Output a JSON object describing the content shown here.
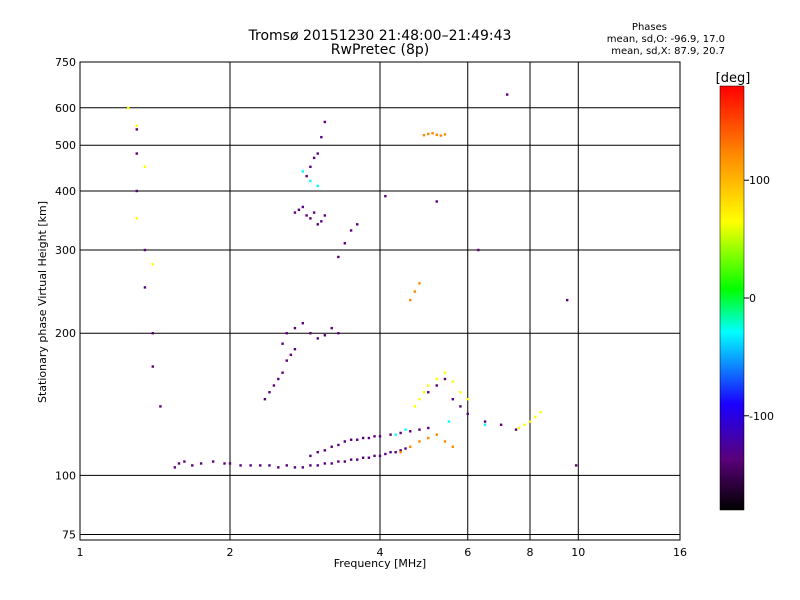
{
  "header": {
    "title": "Tromsø 20151230 21:48:00–21:49:43",
    "subtitle": "RwPretec (8p)"
  },
  "stats": {
    "heading": "Phases",
    "line1": "mean, sd,O: -96.9, 17.0",
    "line2": "mean, sd,X:  87.9, 20.7"
  },
  "chart_data": {
    "type": "scatter",
    "xlabel": "Frequency [MHz]",
    "ylabel": "Stationary phase Virtual Height [km]",
    "xscale": "log",
    "yscale": "log",
    "xlim": [
      1,
      16
    ],
    "ylim": [
      73,
      750
    ],
    "xticks": [
      1,
      2,
      4,
      6,
      8,
      10,
      16
    ],
    "yticks": [
      75,
      100,
      200,
      300,
      400,
      500,
      600,
      750
    ],
    "grid": true,
    "colorbar": {
      "label": "[deg]",
      "range": [
        -180,
        180
      ],
      "ticks": [
        100,
        0,
        -100
      ]
    },
    "series": [
      {
        "phase": -100,
        "x": [
          1.55,
          1.58,
          1.62,
          1.68,
          1.75,
          1.85,
          1.95,
          2.0,
          2.1,
          2.2,
          2.3,
          2.4,
          2.5,
          2.6,
          2.7,
          2.8,
          2.9,
          3.0,
          3.1,
          3.2,
          3.3,
          3.4,
          3.5,
          3.6,
          3.7,
          3.8,
          3.9,
          4.0,
          4.1,
          4.2,
          4.3,
          4.4,
          4.5
        ],
        "y": [
          104,
          106,
          107,
          105,
          106,
          107,
          106,
          106,
          105,
          105,
          105,
          105,
          104,
          105,
          104,
          104,
          105,
          105,
          106,
          106,
          107,
          107,
          108,
          108,
          109,
          109,
          110,
          110,
          111,
          112,
          112,
          113,
          114
        ]
      },
      {
        "phase": -100,
        "x": [
          2.9,
          3.0,
          3.1,
          3.2,
          3.3,
          3.4,
          3.5,
          3.6,
          3.7,
          3.8,
          3.9,
          4.0,
          4.2,
          4.4,
          4.6,
          4.8,
          5.0
        ],
        "y": [
          110,
          112,
          113,
          115,
          116,
          118,
          119,
          119,
          120,
          120,
          121,
          121,
          122,
          123,
          124,
          125,
          126
        ]
      },
      {
        "phase": -100,
        "x": [
          2.35,
          2.4,
          2.45,
          2.5,
          2.55,
          2.6,
          2.65,
          2.7
        ],
        "y": [
          145,
          150,
          155,
          160,
          165,
          175,
          180,
          185
        ]
      },
      {
        "phase": -100,
        "x": [
          2.55,
          2.6,
          2.7,
          2.8,
          2.9,
          3.0,
          3.1,
          3.2,
          3.3
        ],
        "y": [
          190,
          200,
          205,
          210,
          200,
          195,
          198,
          205,
          200
        ]
      },
      {
        "phase": -100,
        "x": [
          2.7,
          2.75,
          2.8,
          2.85,
          2.9,
          2.95,
          3.0,
          3.05,
          3.1
        ],
        "y": [
          360,
          365,
          370,
          355,
          350,
          360,
          340,
          345,
          355
        ]
      },
      {
        "phase": -100,
        "x": [
          2.85,
          2.9,
          2.95,
          3.0,
          3.05,
          3.1
        ],
        "y": [
          430,
          450,
          470,
          480,
          520,
          560
        ]
      },
      {
        "phase": -100,
        "x": [
          3.3,
          3.4,
          3.5,
          3.6
        ],
        "y": [
          290,
          310,
          330,
          340
        ]
      },
      {
        "phase": -100,
        "x": [
          5.0,
          5.2,
          5.4,
          5.6,
          5.8,
          6.0,
          6.5,
          7.0,
          7.5
        ],
        "y": [
          150,
          155,
          160,
          145,
          140,
          135,
          130,
          128,
          125
        ]
      },
      {
        "phase": 100,
        "x": [
          4.7,
          4.8,
          4.9,
          5.0,
          5.2,
          5.4,
          5.6,
          5.8,
          6.0
        ],
        "y": [
          140,
          145,
          150,
          155,
          160,
          165,
          158,
          150,
          145
        ]
      },
      {
        "phase": 100,
        "x": [
          7.6,
          7.8,
          8.0,
          8.2,
          8.4
        ],
        "y": [
          126,
          128,
          130,
          133,
          136
        ]
      },
      {
        "phase": 150,
        "x": [
          4.4,
          4.6,
          4.8,
          5.0,
          5.2,
          5.4,
          5.6
        ],
        "y": [
          112,
          115,
          118,
          120,
          122,
          118,
          115
        ]
      },
      {
        "phase": 150,
        "x": [
          4.9,
          5.0,
          5.1,
          5.2,
          5.3,
          5.4
        ],
        "y": [
          525,
          528,
          530,
          526,
          524,
          527
        ]
      },
      {
        "phase": 130,
        "x": [
          4.6,
          4.7,
          4.8
        ],
        "y": [
          235,
          245,
          255
        ]
      },
      {
        "phase": -20,
        "x": [
          2.8,
          2.9,
          3.0,
          4.3,
          4.5,
          5.5,
          6.5
        ],
        "y": [
          440,
          420,
          410,
          122,
          125,
          130,
          128
        ]
      },
      {
        "phase": -100,
        "x": [
          1.3,
          1.3,
          1.3,
          1.35,
          1.35,
          1.4,
          1.4,
          1.45
        ],
        "y": [
          540,
          480,
          400,
          300,
          250,
          200,
          170,
          140
        ]
      },
      {
        "phase": 110,
        "x": [
          1.25,
          1.3,
          1.35,
          1.3,
          1.4
        ],
        "y": [
          600,
          550,
          450,
          350,
          280
        ]
      },
      {
        "phase": -100,
        "x": [
          4.1,
          5.2,
          6.3,
          7.2,
          9.5,
          9.9
        ],
        "y": [
          390,
          380,
          300,
          640,
          235,
          105
        ]
      }
    ]
  }
}
